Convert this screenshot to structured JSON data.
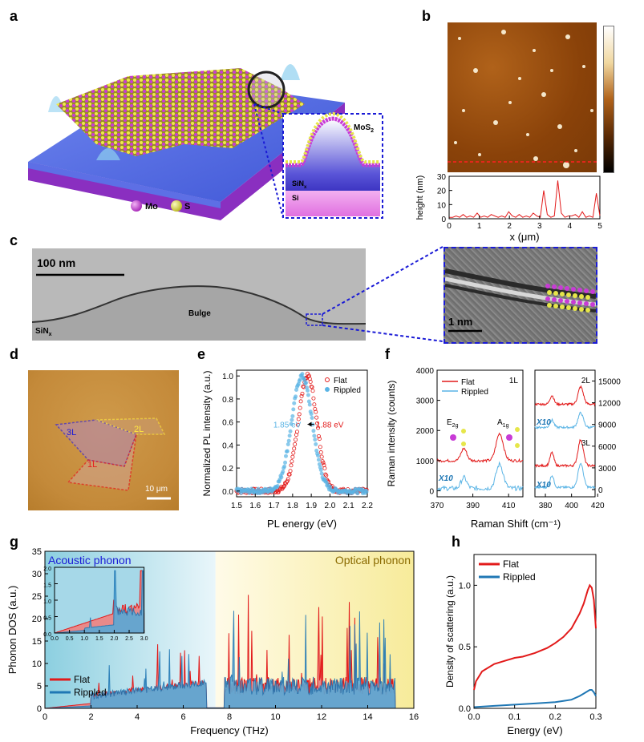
{
  "panel_labels": [
    "a",
    "b",
    "c",
    "d",
    "e",
    "f",
    "g",
    "h"
  ],
  "colors": {
    "flat": "#e21a1a",
    "rippled": "#1f77b4",
    "rippled_light": "#5ab4e5",
    "highlight": "#1a1ad6",
    "mo": "#c83bd6",
    "s": "#e6e64a"
  },
  "panel_a": {
    "inset_label_mos2": "MoS",
    "inset_label_mos2_sub": "2",
    "inset_label_sinx": "SiN",
    "inset_label_sinx_sub": "x",
    "inset_label_si": "Si",
    "legend_mo": "Mo",
    "legend_s": "S"
  },
  "panel_b": {
    "profile_y": [
      1,
      1,
      2,
      1,
      3,
      1,
      2,
      1,
      4,
      1,
      2,
      1,
      3,
      2,
      1,
      2,
      1,
      5,
      2,
      1,
      3,
      1,
      2,
      1,
      4,
      2,
      1,
      20,
      3,
      1,
      2,
      27,
      4,
      1,
      2,
      2,
      3,
      1,
      5,
      1,
      2,
      1,
      18,
      2
    ],
    "xlabel": "x (μm)",
    "ylabel": "height (nm)",
    "xticks": [
      "0",
      "1",
      "2",
      "3",
      "4",
      "5"
    ],
    "yticks": [
      "0",
      "10",
      "20",
      "30"
    ],
    "xlim": [
      0,
      5
    ],
    "ylim": [
      0,
      30
    ]
  },
  "panel_c": {
    "scale_main": "100 nm",
    "bulge": "Bulge",
    "sinx": "SiN",
    "sinx_sub": "x",
    "scale_inset": "1 nm"
  },
  "panel_d": {
    "label_3l": "3L",
    "label_2l": "2L",
    "label_1l": "1L",
    "scale": "10 μm"
  },
  "chart_data": [
    {
      "panel": "e",
      "type": "scatter",
      "xlabel": "PL energy (eV)",
      "ylabel": "Normalized PL intensity (a.u.)",
      "xlim": [
        1.5,
        2.2
      ],
      "ylim": [
        -0.05,
        1.05
      ],
      "xticks": [
        "1.5",
        "1.6",
        "1.7",
        "1.8",
        "1.9",
        "2.0",
        "2.1",
        "2.2"
      ],
      "yticks": [
        "0.0",
        "0.2",
        "0.4",
        "0.6",
        "0.8",
        "1.0"
      ],
      "series": [
        {
          "name": "Flat",
          "peak": 1.88,
          "width": 0.05
        },
        {
          "name": "Rippled",
          "peak": 1.85,
          "width": 0.055
        }
      ],
      "annotations": [
        "1.85 eV",
        "1.88 eV"
      ]
    },
    {
      "panel": "f",
      "type": "line",
      "xlabel": "Raman Shift (cm⁻¹)",
      "ylabel": "Raman intensity (counts)",
      "left_xlim": [
        370,
        418
      ],
      "left_ylim": [
        -200,
        4000
      ],
      "left_xticks": [
        "370",
        "390",
        "410"
      ],
      "left_yticks": [
        "0",
        "1000",
        "2000",
        "3000",
        "4000"
      ],
      "right_xlim": [
        372,
        418
      ],
      "right_ylim": [
        -1000,
        16500
      ],
      "right_xticks": [
        "380",
        "400",
        "420"
      ],
      "right_yticks": [
        "0",
        "3000",
        "6000",
        "9000",
        "12000",
        "15000"
      ],
      "series": [
        {
          "name": "Flat"
        },
        {
          "name": "Rippled"
        }
      ],
      "peaks_cm": [
        385,
        405
      ],
      "labels": {
        "l1": "1L",
        "l2": "2L",
        "l3": "3L",
        "x10": "X10",
        "e2g": "E",
        "e2g_sub": "2g",
        "a1g": "A",
        "a1g_sub": "1g"
      }
    },
    {
      "panel": "g",
      "type": "line",
      "xlabel": "Frequency (THz)",
      "ylabel": "Phonon DOS (a.u.)",
      "xlim": [
        0,
        16
      ],
      "ylim": [
        0,
        35
      ],
      "xticks": [
        "0",
        "2",
        "4",
        "6",
        "8",
        "10",
        "12",
        "14",
        "16"
      ],
      "yticks": [
        "0",
        "5",
        "10",
        "15",
        "20",
        "25",
        "30",
        "35"
      ],
      "series": [
        {
          "name": "Flat"
        },
        {
          "name": "Rippled"
        }
      ],
      "regions": {
        "acoustic": "Acoustic phonon",
        "optical": "Optical phonon"
      },
      "inset": {
        "xlim": [
          0,
          3
        ],
        "ylim": [
          0,
          2.0
        ],
        "xticks": [
          "0.0",
          "0.5",
          "1.0",
          "1.5",
          "2.0",
          "2.5",
          "3.0"
        ],
        "yticks": [
          "0.0",
          "0.5",
          "1.0",
          "1.5",
          "2.0"
        ]
      }
    },
    {
      "panel": "h",
      "type": "line",
      "xlabel": "Energy (eV)",
      "ylabel": "Density of scattering (a.u.)",
      "xlim": [
        0,
        0.3
      ],
      "ylim": [
        0,
        1.25
      ],
      "xticks": [
        "0.0",
        "0.1",
        "0.2",
        "0.3"
      ],
      "yticks": [
        "0.0",
        "0.5",
        "1.0"
      ],
      "series": [
        {
          "name": "Flat",
          "x": [
            0,
            0.005,
            0.02,
            0.05,
            0.08,
            0.1,
            0.12,
            0.15,
            0.18,
            0.2,
            0.22,
            0.24,
            0.25,
            0.26,
            0.27,
            0.28,
            0.285,
            0.29,
            0.295,
            0.3
          ],
          "values": [
            0.15,
            0.22,
            0.3,
            0.36,
            0.39,
            0.41,
            0.42,
            0.45,
            0.49,
            0.53,
            0.58,
            0.65,
            0.71,
            0.77,
            0.85,
            0.96,
            1.0,
            0.98,
            0.88,
            0.65
          ]
        },
        {
          "name": "Rippled",
          "x": [
            0,
            0.05,
            0.1,
            0.15,
            0.2,
            0.22,
            0.24,
            0.26,
            0.27,
            0.28,
            0.285,
            0.29,
            0.295,
            0.3
          ],
          "values": [
            0.01,
            0.02,
            0.03,
            0.04,
            0.05,
            0.06,
            0.07,
            0.1,
            0.12,
            0.14,
            0.15,
            0.15,
            0.13,
            0.1
          ]
        }
      ]
    }
  ]
}
